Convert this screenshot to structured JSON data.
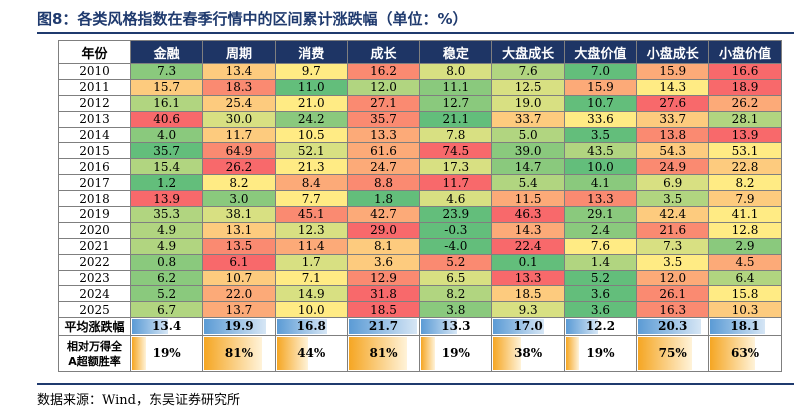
{
  "title": "图8：各类风格指数在春季行情中的区间累计涨跌幅（单位：%）",
  "source": "数据来源：Wind，东吴证券研究所",
  "chart_data": {
    "type": "table",
    "columns": [
      "年份",
      "金融",
      "周期",
      "消费",
      "成长",
      "稳定",
      "大盘成长",
      "大盘价值",
      "小盘成长",
      "小盘价值"
    ],
    "rows": [
      {
        "year": "2010",
        "values": [
          "7.3",
          "13.4",
          "9.7",
          "16.2",
          "8.0",
          "7.6",
          "7.0",
          "15.9",
          "16.6"
        ]
      },
      {
        "year": "2011",
        "values": [
          "15.7",
          "18.3",
          "11.0",
          "12.0",
          "11.1",
          "12.5",
          "15.9",
          "14.3",
          "18.9"
        ]
      },
      {
        "year": "2012",
        "values": [
          "16.1",
          "25.4",
          "21.0",
          "27.1",
          "12.7",
          "19.0",
          "10.7",
          "27.6",
          "26.2"
        ]
      },
      {
        "year": "2013",
        "values": [
          "40.6",
          "30.0",
          "24.2",
          "35.7",
          "21.1",
          "33.7",
          "33.6",
          "33.7",
          "28.1"
        ]
      },
      {
        "year": "2014",
        "values": [
          "4.0",
          "11.7",
          "10.5",
          "13.3",
          "7.8",
          "5.0",
          "3.5",
          "13.8",
          "13.9"
        ]
      },
      {
        "year": "2015",
        "values": [
          "35.7",
          "64.9",
          "52.1",
          "61.6",
          "74.5",
          "39.0",
          "43.5",
          "54.3",
          "53.1"
        ]
      },
      {
        "year": "2016",
        "values": [
          "15.4",
          "26.2",
          "21.3",
          "24.7",
          "17.3",
          "14.7",
          "10.0",
          "24.9",
          "22.8"
        ]
      },
      {
        "year": "2017",
        "values": [
          "1.2",
          "8.2",
          "8.4",
          "8.8",
          "11.7",
          "5.4",
          "4.1",
          "6.9",
          "8.2"
        ]
      },
      {
        "year": "2018",
        "values": [
          "13.9",
          "3.0",
          "7.7",
          "1.8",
          "4.6",
          "11.5",
          "13.3",
          "3.5",
          "7.9"
        ]
      },
      {
        "year": "2019",
        "values": [
          "35.3",
          "38.1",
          "45.1",
          "42.7",
          "23.9",
          "46.3",
          "29.1",
          "42.4",
          "41.1"
        ]
      },
      {
        "year": "2020",
        "values": [
          "4.9",
          "13.1",
          "12.3",
          "29.0",
          "-0.3",
          "14.3",
          "2.4",
          "21.6",
          "12.8"
        ]
      },
      {
        "year": "2021",
        "values": [
          "4.9",
          "13.5",
          "11.4",
          "8.1",
          "-4.0",
          "22.4",
          "7.6",
          "7.3",
          "2.9"
        ]
      },
      {
        "year": "2022",
        "values": [
          "0.8",
          "6.1",
          "1.7",
          "3.6",
          "5.2",
          "0.1",
          "1.4",
          "3.5",
          "4.5"
        ]
      },
      {
        "year": "2023",
        "values": [
          "6.2",
          "10.7",
          "7.1",
          "12.9",
          "6.5",
          "13.3",
          "5.2",
          "12.0",
          "6.4"
        ]
      },
      {
        "year": "2024",
        "values": [
          "5.2",
          "22.0",
          "14.9",
          "31.8",
          "8.2",
          "18.5",
          "3.6",
          "26.1",
          "15.8"
        ]
      },
      {
        "year": "2025",
        "values": [
          "6.7",
          "13.7",
          "10.0",
          "18.5",
          "3.8",
          "9.3",
          "3.6",
          "16.3",
          "10.3"
        ]
      }
    ],
    "average_label": "平均涨跌幅",
    "average": [
      "13.4",
      "19.9",
      "16.8",
      "21.7",
      "13.3",
      "17.0",
      "12.2",
      "20.3",
      "18.1"
    ],
    "average_fill": [
      0.5,
      0.86,
      0.7,
      0.96,
      0.5,
      0.71,
      0.45,
      0.88,
      0.77
    ],
    "win_label_line1": "相对万得全",
    "win_label_line2": "A超额胜率",
    "win_rate": [
      "19%",
      "81%",
      "44%",
      "81%",
      "19%",
      "38%",
      "19%",
      "75%",
      "63%"
    ],
    "win_fill": [
      0.19,
      0.81,
      0.44,
      0.81,
      0.19,
      0.38,
      0.19,
      0.75,
      0.63
    ],
    "color_scale": {
      "low": "#63be7b",
      "mid": "#ffeb84",
      "high": "#f8696b"
    }
  }
}
